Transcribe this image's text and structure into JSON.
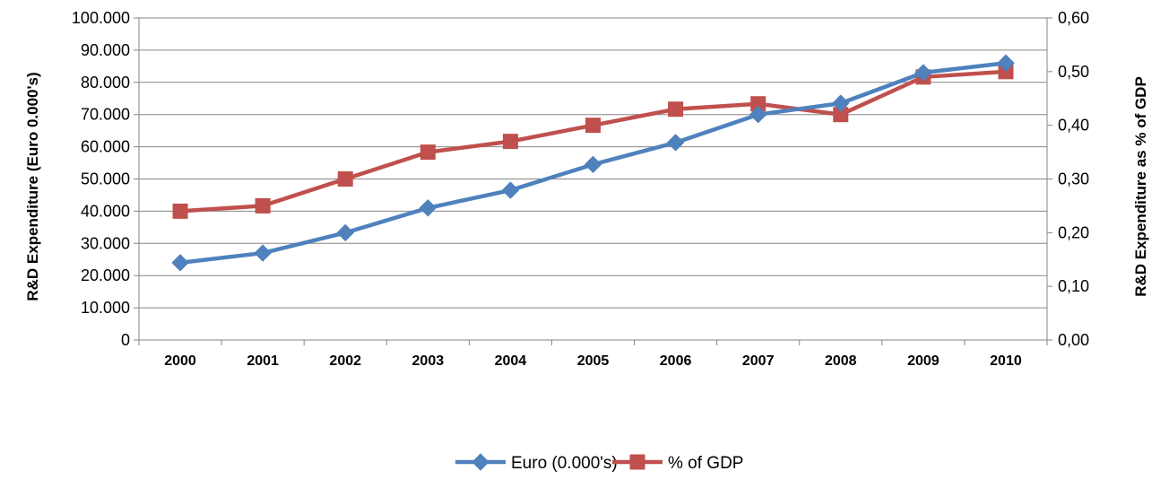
{
  "chart_data": {
    "type": "line",
    "x": [
      "2000",
      "2001",
      "2002",
      "2003",
      "2004",
      "2005",
      "2006",
      "2007",
      "2008",
      "2009",
      "2010"
    ],
    "series": [
      {
        "name": "Euro (0.000's)",
        "axis": "left",
        "color": "#4F81BD",
        "marker": "diamond",
        "values": [
          24000,
          27000,
          33300,
          41000,
          46500,
          54500,
          61300,
          70000,
          73500,
          83000,
          86000
        ]
      },
      {
        "name": "% of GDP",
        "axis": "right",
        "color": "#C0504D",
        "marker": "square",
        "values": [
          0.24,
          0.25,
          0.3,
          0.35,
          0.37,
          0.4,
          0.43,
          0.44,
          0.42,
          0.49,
          0.5
        ]
      }
    ],
    "ylabel_left": "R&D Expenditure (Euro 0.000's)",
    "ylabel_right": "R&D Expenditure as % of GDP",
    "ylim_left": [
      0,
      100000
    ],
    "ylim_right": [
      0,
      0.6
    ],
    "yticks_left": [
      "0",
      "10.000",
      "20.000",
      "30.000",
      "40.000",
      "50.000",
      "60.000",
      "70.000",
      "80.000",
      "90.000",
      "100.000"
    ],
    "yticks_right": [
      "0,00",
      "0,10",
      "0,20",
      "0,30",
      "0,40",
      "0,50",
      "0,60"
    ],
    "grid": true,
    "legend_position": "bottom"
  }
}
